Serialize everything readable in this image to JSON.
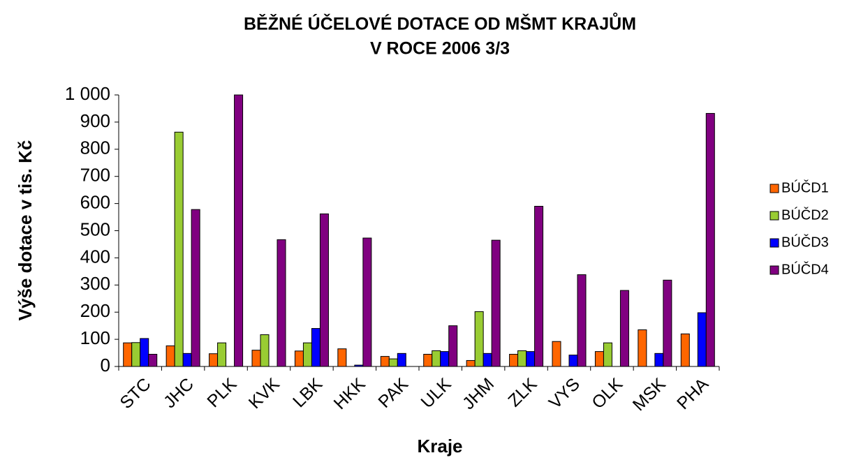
{
  "chart_data": {
    "type": "bar",
    "title": "BĚŽNÉ ÚČELOVÉ DOTACE OD MŠMT KRAJŮM",
    "subtitle": "V ROCE 2006 3/3",
    "x_label": "Kraje",
    "y_label": "Výše dotace v tis. Kč",
    "categories": [
      "STC",
      "JHC",
      "PLK",
      "KVK",
      "LBK",
      "HKK",
      "PAK",
      "ULK",
      "JHM",
      "ZLK",
      "VYS",
      "OLK",
      "MSK",
      "PHA"
    ],
    "series": [
      {
        "name": "BÚČD1",
        "color": "#ff6600",
        "values": [
          87,
          76,
          47,
          60,
          57,
          65,
          37,
          45,
          22,
          45,
          92,
          55,
          135,
          120
        ]
      },
      {
        "name": "BÚČD2",
        "color": "#99cc33",
        "values": [
          88,
          863,
          87,
          117,
          87,
          0,
          28,
          58,
          202,
          58,
          0,
          87,
          0,
          0
        ]
      },
      {
        "name": "BÚČD3",
        "color": "#0000ff",
        "values": [
          103,
          48,
          0,
          0,
          140,
          5,
          48,
          55,
          48,
          55,
          42,
          0,
          48,
          198
        ]
      },
      {
        "name": "BÚČD4",
        "color": "#800080",
        "values": [
          45,
          578,
          1000,
          467,
          562,
          473,
          0,
          150,
          465,
          590,
          338,
          280,
          318,
          932
        ]
      }
    ],
    "ylim": [
      0,
      1000
    ],
    "yticks": [
      0,
      100,
      200,
      300,
      400,
      500,
      600,
      700,
      800,
      900,
      {
        "value": 1000,
        "label": "1 000"
      }
    ],
    "grid": false,
    "legend": "right"
  }
}
